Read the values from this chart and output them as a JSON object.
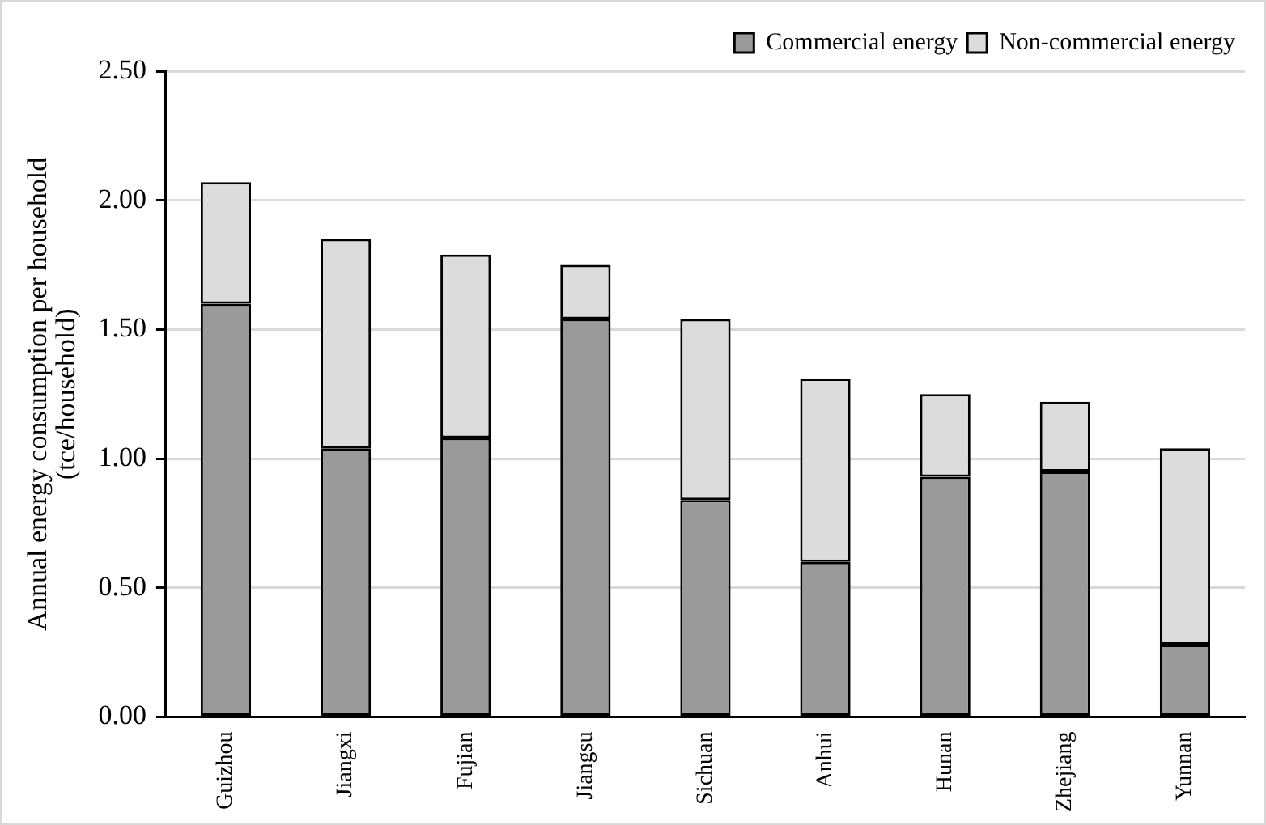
{
  "chart_data": {
    "type": "bar",
    "stacked": true,
    "ylabel": "Annual energy consumption per household (tce/household)",
    "categories": [
      "Guizhou",
      "Jiangxi",
      "Fujian",
      "Jiangsu",
      "Sichuan",
      "Anhui",
      "Hunan",
      "Zhejiang",
      "Yunnan"
    ],
    "series": [
      {
        "name": "Commercial energy",
        "color": "#9a9a9a",
        "values": [
          1.6,
          1.04,
          1.08,
          1.54,
          0.84,
          0.6,
          0.93,
          0.95,
          0.28
        ]
      },
      {
        "name": "Non-commercial energy",
        "color": "#dcdcdc",
        "values": [
          0.47,
          0.81,
          0.71,
          0.21,
          0.7,
          0.71,
          0.32,
          0.27,
          0.76
        ]
      }
    ],
    "ylim": [
      0,
      2.5
    ],
    "yticks": [
      {
        "value": 0,
        "label": "0.00"
      },
      {
        "value": 0.5,
        "label": "0.50"
      },
      {
        "value": 1,
        "label": "1.00"
      },
      {
        "value": 1.5,
        "label": "1.50"
      },
      {
        "value": 2,
        "label": "2.00"
      },
      {
        "value": 2.5,
        "label": "2.50"
      }
    ],
    "grid": "y",
    "legend": "top right"
  }
}
